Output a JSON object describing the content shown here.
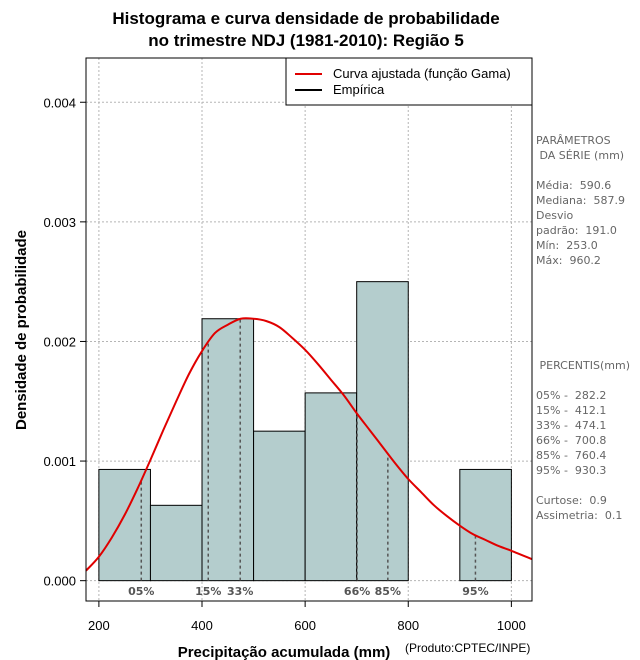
{
  "chart_data": {
    "type": "bar",
    "title": [
      "Histograma e curva densidade de probabilidade",
      "no trimestre NDJ (1981-2010): Região 5"
    ],
    "xlabel": "Precipitação acumulada (mm)",
    "ylabel": "Densidade de probabilidade",
    "credit": "(Produto:CPTEC/INPE)",
    "xlim": [
      175,
      1040
    ],
    "ylim": [
      -0.00017,
      0.00437
    ],
    "x_ticks": [
      200,
      400,
      600,
      800,
      1000
    ],
    "y_ticks": [
      0.0,
      0.001,
      0.002,
      0.003,
      0.004
    ],
    "y_tick_labels": [
      "0.000",
      "0.001",
      "0.002",
      "0.003",
      "0.004"
    ],
    "bins": [
      {
        "from": 200,
        "to": 300,
        "density": 0.00093
      },
      {
        "from": 300,
        "to": 400,
        "density": 0.00063
      },
      {
        "from": 400,
        "to": 500,
        "density": 0.00219
      },
      {
        "from": 500,
        "to": 600,
        "density": 0.00125
      },
      {
        "from": 600,
        "to": 700,
        "density": 0.00157
      },
      {
        "from": 700,
        "to": 800,
        "density": 0.0025
      },
      {
        "from": 800,
        "to": 900,
        "density": 0.0
      },
      {
        "from": 900,
        "to": 1000,
        "density": 0.00093
      }
    ],
    "fitted_curve": {
      "name": "Curva ajustada (função Gama)",
      "color": "#e00000",
      "x": [
        175,
        200,
        225,
        250,
        275,
        300,
        325,
        350,
        375,
        400,
        425,
        450,
        475,
        500,
        525,
        550,
        575,
        600,
        625,
        650,
        675,
        700,
        725,
        750,
        775,
        800,
        825,
        850,
        875,
        900,
        925,
        950,
        975,
        1000,
        1040
      ],
      "y": [
        8.35e-05,
        0.0002,
        0.00036,
        0.00055,
        0.00077,
        0.00101,
        0.00126,
        0.0015,
        0.00173,
        0.00192,
        0.00207,
        0.00214,
        0.00219,
        0.00219,
        0.00217,
        0.00212,
        0.00203,
        0.00193,
        0.00181,
        0.00168,
        0.00155,
        0.0014,
        0.00126,
        0.00112,
        0.00098,
        0.00085,
        0.00074,
        0.00063,
        0.00054,
        0.00046,
        0.00039,
        0.00034,
        0.00029,
        0.00025,
        0.00018
      ]
    },
    "empirical": {
      "name": "Empírica",
      "color": "#000000"
    },
    "percentile_lines": [
      {
        "label": "05%",
        "x": 282.2
      },
      {
        "label": "15%",
        "x": 412.1
      },
      {
        "label": "33%",
        "x": 474.1
      },
      {
        "label": "66%",
        "x": 700.8
      },
      {
        "label": "85%",
        "x": 760.4
      },
      {
        "label": "95%",
        "x": 930.3
      }
    ],
    "bar_color": "#b4cdcd",
    "grid": true,
    "legend_position": "top-right"
  },
  "side_panel": {
    "params_title_1": "PARÂMETROS",
    "params_title_2": " DA SÉRIE (mm)",
    "media": "Média:  590.6",
    "mediana": "Mediana:  587.9",
    "desvio_1": "Desvio",
    "desvio_2": "padrão:  191.0",
    "min": "Mín:  253.0",
    "max": "Máx:  960.2",
    "percentis_title": " PERCENTIS(mm)",
    "p05": "05% -  282.2",
    "p15": "15% -  412.1",
    "p33": "33% -  474.1",
    "p66": "66% -  700.8",
    "p85": "85% -  760.4",
    "p95": "95% -  930.3",
    "curtose": "Curtose:  0.9",
    "assimetria": "Assimetria:  0.1"
  }
}
